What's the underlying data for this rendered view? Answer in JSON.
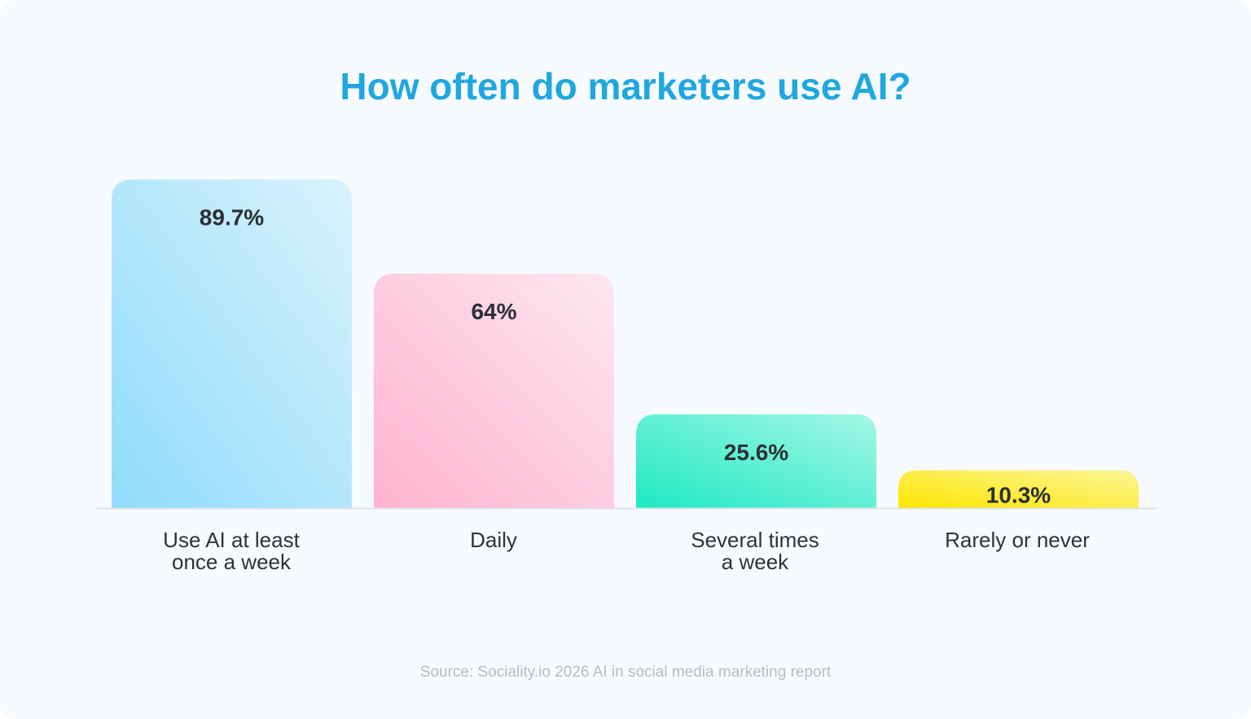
{
  "chart_data": {
    "type": "bar",
    "title": "How often do marketers use AI?",
    "categories": [
      "Use AI at least\nonce a week",
      "Daily",
      "Several times\na week",
      "Rarely or never"
    ],
    "values": [
      89.7,
      64,
      25.6,
      10.3
    ],
    "value_labels": [
      "89.7%",
      "64%",
      "25.6%",
      "10.3%"
    ],
    "ylim": [
      0,
      100
    ],
    "grid": false,
    "legend": "none",
    "colors": [
      {
        "from": "#8fdcfb",
        "to": "#d9f2fd"
      },
      {
        "from": "#ffb3cf",
        "to": "#fde7f1"
      },
      {
        "from": "#1de9c3",
        "to": "#a6f7e6"
      },
      {
        "from": "#ffe600",
        "to": "#fbf598"
      }
    ],
    "axis_color": "#dde3e8",
    "title_color": "#1fa7e1",
    "source": "Source: Sociality.io 2026 AI in social media marketing report"
  }
}
